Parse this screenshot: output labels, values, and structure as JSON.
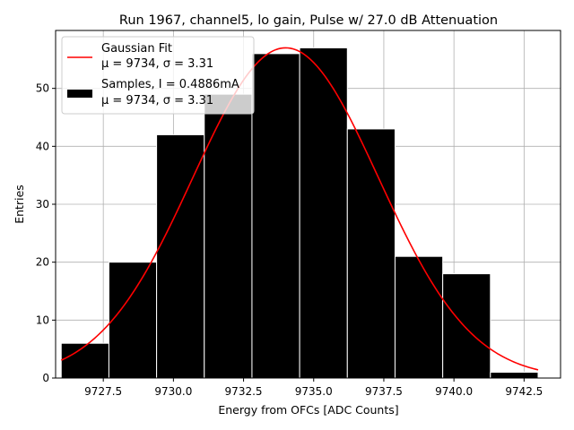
{
  "chart_data": {
    "type": "bar",
    "title": "Run 1967, channel5, lo gain, Pulse w/ 27.0 dB Attenuation",
    "xlabel": "Energy from OFCs [ADC Counts]",
    "ylabel": "Entries",
    "xlim": [
      9725.8,
      9743.8
    ],
    "ylim": [
      0,
      60
    ],
    "xticks": [
      9727.5,
      9730.0,
      9732.5,
      9735.0,
      9737.5,
      9740.0,
      9742.5
    ],
    "xtick_labels": [
      "9727.5",
      "9730.0",
      "9732.5",
      "9735.0",
      "9737.5",
      "9740.0",
      "9742.5"
    ],
    "yticks": [
      0,
      10,
      20,
      30,
      40,
      50
    ],
    "ytick_labels": [
      "0",
      "10",
      "20",
      "30",
      "40",
      "50"
    ],
    "grid": true,
    "legend_position": "upper-left",
    "histogram": {
      "name_line1": "Samples, I = 0.4886mA",
      "name_line2": "μ = 9734, σ = 3.31",
      "color": "#000000",
      "edge_color": "#ffffff",
      "bins": [
        {
          "x0": 9726.0,
          "x1": 9727.7,
          "count": 6
        },
        {
          "x0": 9727.7,
          "x1": 9729.4,
          "count": 20
        },
        {
          "x0": 9729.4,
          "x1": 9731.1,
          "count": 42
        },
        {
          "x0": 9731.1,
          "x1": 9732.8,
          "count": 49
        },
        {
          "x0": 9732.8,
          "x1": 9734.5,
          "count": 56
        },
        {
          "x0": 9734.5,
          "x1": 9736.2,
          "count": 57
        },
        {
          "x0": 9736.2,
          "x1": 9737.9,
          "count": 43
        },
        {
          "x0": 9737.9,
          "x1": 9739.6,
          "count": 21
        },
        {
          "x0": 9739.6,
          "x1": 9741.3,
          "count": 18
        },
        {
          "x0": 9741.3,
          "x1": 9743.0,
          "count": 1
        }
      ]
    },
    "fit": {
      "name": "Gaussian Fit",
      "params_label": "μ = 9734, σ = 3.31",
      "type": "line",
      "color": "#ff0000",
      "amplitude": 57,
      "mu": 9734,
      "sigma": 3.31,
      "x_range": [
        9726.0,
        9743.0
      ]
    }
  }
}
